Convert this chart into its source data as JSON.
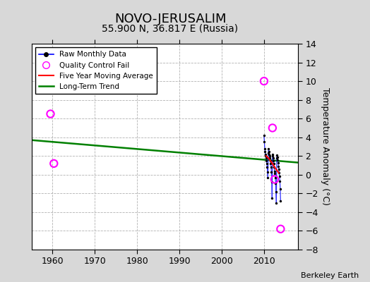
{
  "title": "NOVO-JERUSALIM",
  "subtitle": "55.900 N, 36.817 E (Russia)",
  "ylabel": "Temperature Anomaly (°C)",
  "credit": "Berkeley Earth",
  "xlim": [
    1955,
    2018
  ],
  "ylim": [
    -8,
    14
  ],
  "yticks": [
    -8,
    -6,
    -4,
    -2,
    0,
    2,
    4,
    6,
    8,
    10,
    12,
    14
  ],
  "xticks": [
    1960,
    1970,
    1980,
    1990,
    2000,
    2010
  ],
  "background_color": "#d8d8d8",
  "plot_bg_color": "#ffffff",
  "grid_color": "#aaaaaa",
  "raw_monthly_x": [
    2010.0,
    2010.083,
    2010.167,
    2010.25,
    2010.333,
    2010.417,
    2010.5,
    2010.583,
    2010.667,
    2010.75,
    2010.833,
    2010.917,
    2011.0,
    2011.083,
    2011.167,
    2011.25,
    2011.333,
    2011.417,
    2011.5,
    2011.583,
    2011.667,
    2011.75,
    2011.833,
    2011.917,
    2012.0,
    2012.083,
    2012.167,
    2012.25,
    2012.333,
    2012.417,
    2012.5,
    2012.583,
    2012.667,
    2012.75,
    2012.833,
    2012.917,
    2013.0,
    2013.083,
    2013.167,
    2013.25,
    2013.333,
    2013.417,
    2013.5,
    2013.583,
    2013.667,
    2013.75,
    2013.833,
    2013.917
  ],
  "raw_monthly_y": [
    4.2,
    3.5,
    2.8,
    2.5,
    2.2,
    2.0,
    1.8,
    1.5,
    1.2,
    0.8,
    0.3,
    -0.3,
    2.3,
    2.8,
    2.5,
    2.2,
    2.0,
    1.8,
    1.5,
    1.2,
    0.8,
    0.3,
    -0.8,
    -2.5,
    2.2,
    2.0,
    1.8,
    1.5,
    1.2,
    0.8,
    0.4,
    0.1,
    -0.3,
    -0.9,
    -1.8,
    -3.0,
    1.8,
    2.1,
    1.9,
    1.6,
    1.3,
    0.9,
    0.6,
    0.2,
    -0.2,
    -0.7,
    -1.5,
    -2.8
  ],
  "qc_fail_x": [
    1959.5,
    1960.3,
    2010.0,
    2012.0,
    2012.5,
    2013.917
  ],
  "qc_fail_y": [
    6.5,
    1.2,
    10.0,
    5.0,
    -0.5,
    -5.8
  ],
  "trend_x": [
    1955,
    2018
  ],
  "trend_y": [
    3.7,
    1.3
  ],
  "moving_avg_x": [
    2010.5,
    2011.0,
    2011.5,
    2012.0,
    2012.5,
    2013.0,
    2013.5
  ],
  "moving_avg_y": [
    2.0,
    1.8,
    1.5,
    1.2,
    0.8,
    0.5,
    0.2
  ],
  "title_fontsize": 13,
  "subtitle_fontsize": 10,
  "tick_fontsize": 9,
  "ylabel_fontsize": 9
}
